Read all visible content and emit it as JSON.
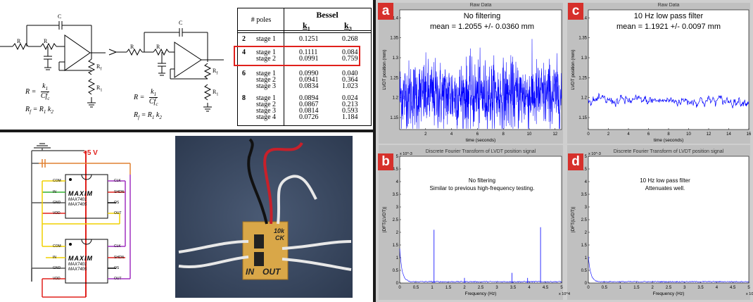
{
  "circuit": {
    "label_c": "C",
    "label_r": "R",
    "label_rf": "R",
    "label_rf_sub": "f",
    "label_r1": "R",
    "label_r1_sub": "1",
    "formula_r_lhs": "R  =",
    "formula_r_num": "k",
    "formula_r_num_sub": "1",
    "formula_r_den": "Cf",
    "formula_r_den_sub": "c",
    "formula_rf": "R",
    "formula_rf_rest": " =  R",
    "formula_rf_k": "k"
  },
  "table": {
    "col1": "# poles",
    "col_group": "Bessel",
    "k1": "k",
    "k1_sub": "1",
    "k2": "k",
    "k2_sub": "2",
    "groups": [
      {
        "poles": "2",
        "stages": [
          "stage 1"
        ],
        "k1": [
          "0.1251"
        ],
        "k2": [
          "0.268"
        ]
      },
      {
        "poles": "4",
        "stages": [
          "stage 1",
          "stage 2"
        ],
        "k1": [
          "0.1111",
          "0.0991"
        ],
        "k2": [
          "0.084",
          "0.759"
        ]
      },
      {
        "poles": "6",
        "stages": [
          "stage 1",
          "stage 2",
          "stage 3"
        ],
        "k1": [
          "0.0990",
          "0.0941",
          "0.0834"
        ],
        "k2": [
          "0.040",
          "0.364",
          "1.023"
        ]
      },
      {
        "poles": "8",
        "stages": [
          "stage 1",
          "stage 2",
          "stage 3",
          "stage 4"
        ],
        "k1": [
          "0.0894",
          "0.0867",
          "0.0814",
          "0.0726"
        ],
        "k2": [
          "0.024",
          "0.213",
          "0.593",
          "1.184"
        ]
      }
    ],
    "highlight_color": "#e0201c"
  },
  "chip_schematic": {
    "supply_label": "+5 V",
    "brand": "MAXIM",
    "part1": "MAX7401",
    "part2": "MAX7405",
    "left_pins": [
      "COM",
      "IN",
      "GND",
      "VDD"
    ],
    "right_pins": [
      "CLK",
      "SHDN",
      "OS",
      "OUT"
    ],
    "colors": {
      "supply": "#e0201c",
      "ground": "#555555",
      "signal": "#f0d000",
      "clock": "#a030c0",
      "input": "#30b030",
      "extra": "#e08030"
    }
  },
  "photo": {
    "board_text_1": "10k",
    "board_text_2": "CK",
    "board_text_3": "IN",
    "board_text_4": "OUT"
  },
  "panels": {
    "a": {
      "letter": "a",
      "title": "Raw Data",
      "annot1": "No filtering",
      "annot2": "mean = 1.2055 +/- 0.0360 mm"
    },
    "b": {
      "letter": "b",
      "title": "Discrete Fourier Transform of LVDT position signal",
      "annot1": "No filtering",
      "annot2": "Similar to previous high-frequency testing."
    },
    "c": {
      "letter": "c",
      "title": "Raw Data",
      "annot1": "10 Hz low pass filter",
      "annot2": "mean = 1.1921 +/-  0.0097 mm"
    },
    "d": {
      "letter": "d",
      "title": "Discrete Fourier Transform of LVDT position signal",
      "annot1": "10 Hz low pass filter",
      "annot2": "Attenuates well."
    }
  },
  "chart_data": [
    {
      "type": "line",
      "panel": "a",
      "title": "Raw Data",
      "xlabel": "time (seconds)",
      "ylabel": "LVDT position (mm)",
      "xlim": [
        0,
        12.5
      ],
      "ylim": [
        1.12,
        1.42
      ],
      "xticks": [
        "2",
        "4",
        "6",
        "8",
        "10",
        "12"
      ],
      "yticks": [
        "1.15",
        "1.2",
        "1.25",
        "1.3",
        "1.35",
        "1.4"
      ],
      "mean": 1.2055,
      "std": 0.036,
      "color": "#0000ff"
    },
    {
      "type": "line",
      "panel": "b",
      "title": "Discrete Fourier Transform of LVDT position signal",
      "xlabel": "Frequency (Hz)",
      "ylabel": "|DFT(LVDT)|",
      "x_multiplier": "x 10^4",
      "y_multiplier": "x 10^-3",
      "xlim": [
        0,
        5
      ],
      "ylim": [
        0,
        5
      ],
      "xticks": [
        "0",
        "0.5",
        "1",
        "1.5",
        "2",
        "2.5",
        "3",
        "3.5",
        "4",
        "4.5",
        "5"
      ],
      "yticks": [
        "0",
        "0.5",
        "1",
        "1.5",
        "2",
        "2.5",
        "3",
        "3.5",
        "4",
        "4.5",
        "5"
      ],
      "peaks": [
        {
          "x": 1.06,
          "y": 2.1
        },
        {
          "x": 4.35,
          "y": 2.2
        },
        {
          "x": 3.47,
          "y": 0.4
        },
        {
          "x": 2.0,
          "y": 0.2
        },
        {
          "x": 3.95,
          "y": 0.2
        }
      ],
      "color": "#0000ff"
    },
    {
      "type": "line",
      "panel": "c",
      "title": "Raw Data",
      "xlabel": "time (seconds)",
      "ylabel": "LVDT position (mm)",
      "xlim": [
        0,
        16
      ],
      "ylim": [
        1.12,
        1.42
      ],
      "xticks": [
        "0",
        "2",
        "4",
        "6",
        "8",
        "10",
        "12",
        "14",
        "16"
      ],
      "yticks": [
        "1.15",
        "1.2",
        "1.25",
        "1.3",
        "1.35",
        "1.4"
      ],
      "mean": 1.1921,
      "std": 0.0097,
      "color": "#0000ff"
    },
    {
      "type": "line",
      "panel": "d",
      "title": "Discrete Fourier Transform of LVDT position signal",
      "xlabel": "Frequency (Hz)",
      "ylabel": "|DFT(LVDT)|",
      "x_multiplier": "x 10^4",
      "y_multiplier": "x 10^-3",
      "xlim": [
        0,
        5
      ],
      "ylim": [
        0,
        5
      ],
      "xticks": [
        "0",
        "0.5",
        "1",
        "1.5",
        "2",
        "2.5",
        "3",
        "3.5",
        "4",
        "4.5",
        "5"
      ],
      "yticks": [
        "0",
        "0.5",
        "1",
        "1.5",
        "2",
        "2.5",
        "3",
        "3.5",
        "4",
        "4.5",
        "5"
      ],
      "color": "#0000ff"
    }
  ]
}
